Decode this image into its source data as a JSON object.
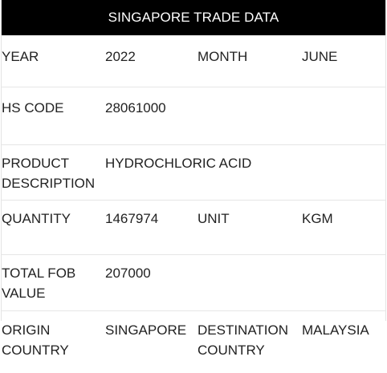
{
  "title": "SINGAPORE TRADE DATA",
  "rows": {
    "year": {
      "label": "YEAR",
      "value": "2022",
      "label2": "MONTH",
      "value2": "JUNE"
    },
    "hs_code": {
      "label": "HS CODE",
      "value": "28061000"
    },
    "product": {
      "label_line1": "PRODUCT",
      "label_line2": "DESCRIPTION",
      "value": "HYDROCHLORIC ACID"
    },
    "quantity": {
      "label": "QUANTITY",
      "value": "1467974",
      "label2": "UNIT",
      "value2": "KGM"
    },
    "fob": {
      "label_line1": "TOTAL FOB",
      "label_line2": "VALUE",
      "value": "207000"
    },
    "origin": {
      "label_line1": "ORIGIN",
      "label_line2": "COUNTRY",
      "value": "SINGAPORE",
      "label2_line1": "DESTINATION",
      "label2_line2": "COUNTRY",
      "value2": "MALAYSIA"
    }
  }
}
